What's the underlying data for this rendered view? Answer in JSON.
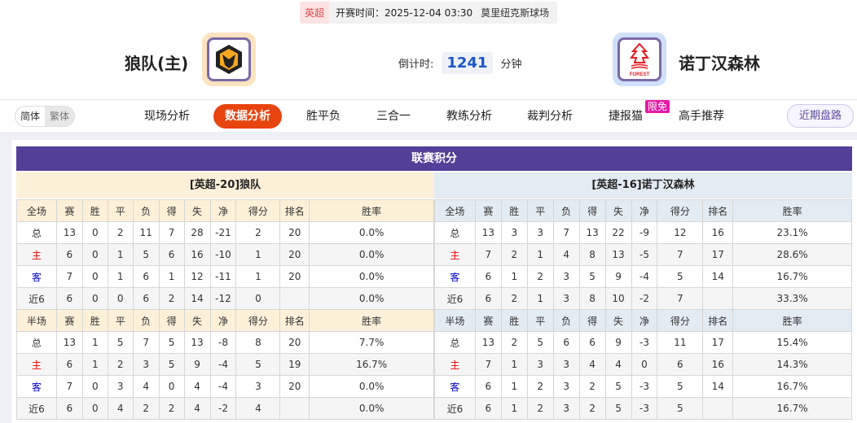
{
  "match": {
    "league": "英超",
    "time": "开赛时间：2025-12-04 03:30",
    "venue": "莫里纽克斯球场",
    "home": "狼队(主)",
    "away": "诺丁汉森林",
    "countdown_label": "倒计时:",
    "countdown": "1241",
    "countdown_unit": "分钟",
    "home_logo": "wolves-crest",
    "away_logo": "forest-crest",
    "forest_text": "FOREST"
  },
  "nav": {
    "lang": [
      "简体",
      "繁体"
    ],
    "tabs": [
      "现场分析",
      "数据分析",
      "胜平负",
      "三合一",
      "教练分析",
      "裁判分析",
      "捷报猫",
      "高手推荐"
    ],
    "active": "数据分析",
    "badge": "限免",
    "recent": "近期盘路"
  },
  "standings": {
    "title": "联赛积分",
    "accent": "#533f98",
    "home": {
      "label": "[英超-20]狼队",
      "full_header": [
        "全场",
        "赛",
        "胜",
        "平",
        "负",
        "得",
        "失",
        "净",
        "得分",
        "排名",
        "胜率"
      ],
      "full": [
        [
          "总",
          "13",
          "0",
          "2",
          "11",
          "7",
          "28",
          "-21",
          "2",
          "20",
          "0.0%"
        ],
        [
          "主",
          "6",
          "0",
          "1",
          "5",
          "6",
          "16",
          "-10",
          "1",
          "20",
          "0.0%"
        ],
        [
          "客",
          "7",
          "0",
          "1",
          "6",
          "1",
          "12",
          "-11",
          "1",
          "20",
          "0.0%"
        ],
        [
          "近6",
          "6",
          "0",
          "0",
          "6",
          "2",
          "14",
          "-12",
          "0",
          "",
          "0.0%"
        ]
      ],
      "half_header": [
        "半场",
        "赛",
        "胜",
        "平",
        "负",
        "得",
        "失",
        "净",
        "得分",
        "排名",
        "胜率"
      ],
      "half": [
        [
          "总",
          "13",
          "1",
          "5",
          "7",
          "5",
          "13",
          "-8",
          "8",
          "20",
          "7.7%"
        ],
        [
          "主",
          "6",
          "1",
          "2",
          "3",
          "5",
          "9",
          "-4",
          "5",
          "19",
          "16.7%"
        ],
        [
          "客",
          "7",
          "0",
          "3",
          "4",
          "0",
          "4",
          "-4",
          "3",
          "20",
          "0.0%"
        ],
        [
          "近6",
          "6",
          "0",
          "4",
          "2",
          "2",
          "4",
          "-2",
          "4",
          "",
          "0.0%"
        ]
      ]
    },
    "away": {
      "label": "[英超-16]诺丁汉森林",
      "full_header": [
        "全场",
        "赛",
        "胜",
        "平",
        "负",
        "得",
        "失",
        "净",
        "得分",
        "排名",
        "胜率"
      ],
      "full": [
        [
          "总",
          "13",
          "3",
          "3",
          "7",
          "13",
          "22",
          "-9",
          "12",
          "16",
          "23.1%"
        ],
        [
          "主",
          "7",
          "2",
          "1",
          "4",
          "8",
          "13",
          "-5",
          "7",
          "17",
          "28.6%"
        ],
        [
          "客",
          "6",
          "1",
          "2",
          "3",
          "5",
          "9",
          "-4",
          "5",
          "14",
          "16.7%"
        ],
        [
          "近6",
          "6",
          "2",
          "1",
          "3",
          "8",
          "10",
          "-2",
          "7",
          "",
          "33.3%"
        ]
      ],
      "half_header": [
        "半场",
        "赛",
        "胜",
        "平",
        "负",
        "得",
        "失",
        "净",
        "得分",
        "排名",
        "胜率"
      ],
      "half": [
        [
          "总",
          "13",
          "2",
          "5",
          "6",
          "6",
          "9",
          "-3",
          "11",
          "17",
          "15.4%"
        ],
        [
          "主",
          "7",
          "1",
          "3",
          "3",
          "4",
          "4",
          "0",
          "6",
          "16",
          "14.3%"
        ],
        [
          "客",
          "6",
          "1",
          "2",
          "3",
          "2",
          "5",
          "-3",
          "5",
          "14",
          "16.7%"
        ],
        [
          "近6",
          "6",
          "1",
          "2",
          "3",
          "2",
          "5",
          "-3",
          "5",
          "",
          "16.7%"
        ]
      ]
    }
  }
}
